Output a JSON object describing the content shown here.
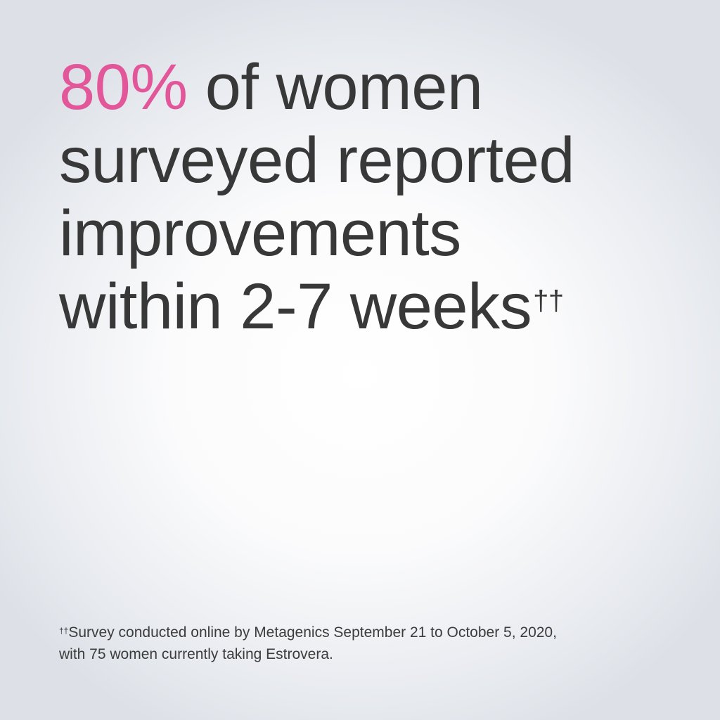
{
  "headline": {
    "highlight": "80%",
    "line1_rest": " of women",
    "line2": "surveyed reported",
    "line3": "improvements",
    "line4": "within 2-7 weeks",
    "footnote_mark": "††"
  },
  "footnote": {
    "mark": "††",
    "line1": "Survey conducted online by Metagenics September 21 to October 5, 2020,",
    "line2": "with 75 women currently taking Estrovera."
  },
  "colors": {
    "accent": "#e2579a",
    "text": "#383838"
  }
}
